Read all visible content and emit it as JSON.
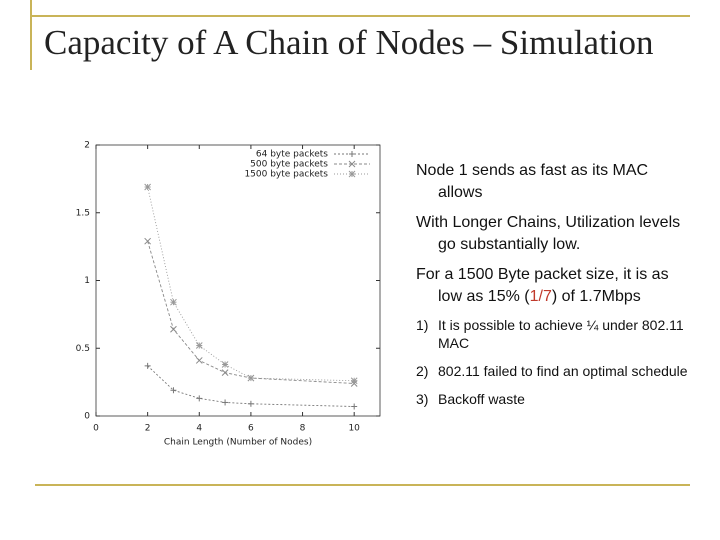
{
  "title": "Capacity of A Chain of Nodes – Simulation",
  "chart_data": {
    "type": "line",
    "x_label": "Chain Length (Number of Nodes)",
    "x": [
      2,
      3,
      4,
      5,
      6,
      10
    ],
    "series": [
      {
        "name": "64 byte packets",
        "color": "#777777",
        "marker": "+",
        "values": [
          0.37,
          0.19,
          0.13,
          0.1,
          0.09,
          0.07
        ]
      },
      {
        "name": "500 byte packets",
        "color": "#888888",
        "marker": "x",
        "values": [
          1.29,
          0.64,
          0.41,
          0.32,
          0.28,
          0.24
        ]
      },
      {
        "name": "1500 byte packets",
        "color": "#999999",
        "marker": "*",
        "values": [
          1.69,
          0.84,
          0.52,
          0.38,
          0.28,
          0.26
        ]
      }
    ],
    "xlim": [
      0,
      11
    ],
    "ylim": [
      0,
      2
    ],
    "xticks": [
      0,
      2,
      4,
      6,
      8,
      10
    ],
    "yticks": [
      0,
      0.5,
      1,
      1.5,
      2
    ],
    "legend": "upper right"
  },
  "bullets": [
    {
      "parts": [
        "Node 1 sends as fast as its MAC allows"
      ]
    },
    {
      "parts": [
        "With Longer Chains, Utilization levels go substantially low."
      ]
    },
    {
      "parts": [
        "For a 1500 Byte packet size, it is as low as 15% (",
        "1/7",
        ") of 1.7Mbps"
      ]
    }
  ],
  "numbered": [
    {
      "marker": "1)",
      "text": "It is possible to achieve ¼ under 802.11 MAC"
    },
    {
      "marker": "2)",
      "text": "802.11 failed to find an optimal schedule"
    },
    {
      "marker": "3)",
      "text": "Backoff waste"
    }
  ]
}
